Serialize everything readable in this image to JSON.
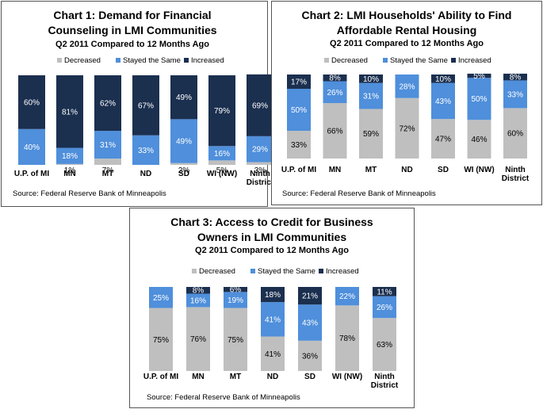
{
  "colors": {
    "decreased": "#BFBFBF",
    "stayed": "#4F8FDB",
    "increased": "#1B2F4F",
    "outline": "#555555"
  },
  "legend_labels": [
    "Decreased",
    "Stayed the Same",
    "Increased"
  ],
  "chart_data": [
    {
      "type": "bar",
      "stacked": true,
      "title_lines": [
        "Chart 1: Demand for Financial",
        "Counseling in LMI Communities"
      ],
      "subtitle": "Q2 2011 Compared to 12 Months Ago",
      "source": "Source: Federal Reserve Bank of Minneapolis",
      "categories": [
        "U.P. of MI",
        "MN",
        "MT",
        "ND",
        "SD",
        "WI (NW)",
        "Ninth|District"
      ],
      "series": [
        {
          "name": "Decreased",
          "values": [
            0,
            1,
            7,
            0,
            2,
            5,
            3
          ],
          "labels": [
            "",
            "1%",
            "7%",
            "",
            "2%",
            "5%",
            "3%"
          ]
        },
        {
          "name": "Stayed the Same",
          "values": [
            40,
            18,
            31,
            33,
            49,
            16,
            29
          ],
          "labels": [
            "40%",
            "18%",
            "31%",
            "33%",
            "49%",
            "16%",
            "29%"
          ]
        },
        {
          "name": "Increased",
          "values": [
            60,
            81,
            62,
            67,
            49,
            79,
            69
          ],
          "labels": [
            "60%",
            "81%",
            "62%",
            "67%",
            "49%",
            "79%",
            "69%"
          ]
        }
      ],
      "ylim": [
        0,
        100
      ]
    },
    {
      "type": "bar",
      "stacked": true,
      "title_lines": [
        "Chart 2: LMI Households' Ability to Find",
        "Affordable Rental Housing"
      ],
      "subtitle": "Q2 2011 Compared to 12 Months Ago",
      "source": "Source: Federal Reserve Bank of Minneapolis",
      "categories": [
        "U.P. of MI",
        "MN",
        "MT",
        "ND",
        "SD",
        "WI (NW)",
        "Ninth|District"
      ],
      "series": [
        {
          "name": "Decreased",
          "values": [
            33,
            66,
            59,
            72,
            47,
            46,
            60
          ],
          "labels": [
            "33%",
            "66%",
            "59%",
            "72%",
            "47%",
            "46%",
            "60%"
          ]
        },
        {
          "name": "Stayed the Same",
          "values": [
            50,
            26,
            31,
            28,
            43,
            50,
            33
          ],
          "labels": [
            "50%",
            "26%",
            "31%",
            "28%",
            "43%",
            "50%",
            "33%"
          ]
        },
        {
          "name": "Increased",
          "values": [
            17,
            8,
            10,
            0,
            10,
            5,
            8
          ],
          "labels": [
            "17%",
            "8%",
            "10%",
            "",
            "10%",
            "5%",
            "8%"
          ]
        }
      ],
      "ylim": [
        0,
        100
      ]
    },
    {
      "type": "bar",
      "stacked": true,
      "title_lines": [
        "Chart 3: Access to Credit for Business",
        "Owners in LMI Communities"
      ],
      "subtitle": "Q2 2011 Compared to 12 Months Ago",
      "source": "Source: Federal Reserve Bank of Minneapolis",
      "categories": [
        "U.P. of MI",
        "MN",
        "MT",
        "ND",
        "SD",
        "WI (NW)",
        "Ninth|District"
      ],
      "series": [
        {
          "name": "Decreased",
          "values": [
            75,
            76,
            75,
            41,
            36,
            78,
            63
          ],
          "labels": [
            "75%",
            "76%",
            "75%",
            "41%",
            "36%",
            "78%",
            "63%"
          ]
        },
        {
          "name": "Stayed the Same",
          "values": [
            25,
            16,
            19,
            41,
            43,
            22,
            26
          ],
          "labels": [
            "25%",
            "16%",
            "19%",
            "41%",
            "43%",
            "22%",
            "26%"
          ]
        },
        {
          "name": "Increased",
          "values": [
            0,
            8,
            6,
            18,
            21,
            0,
            11
          ],
          "labels": [
            "",
            "8%",
            "6%",
            "18%",
            "21%",
            "",
            "11%"
          ]
        }
      ],
      "ylim": [
        0,
        100
      ]
    }
  ]
}
